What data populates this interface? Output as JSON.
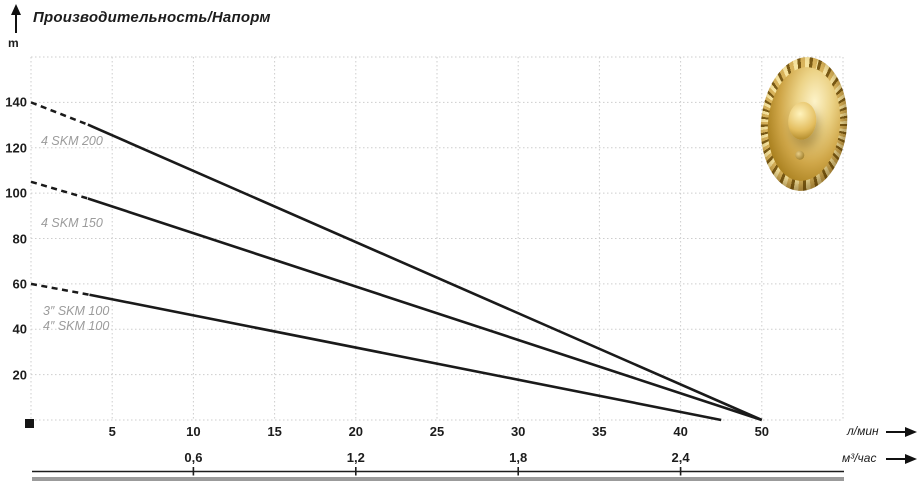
{
  "header": {
    "title": "Производительность/Напорм",
    "y_unit": "m"
  },
  "axis_units": {
    "primary": "л/мин",
    "secondary": "м³/час"
  },
  "curve_labels": {
    "skm200": "4 SKM 200",
    "skm150": "4 SKM 150",
    "skm100_3": "3″ SKM 100",
    "skm100_4": "4″ SKM 100"
  },
  "chart_data": {
    "type": "line",
    "title": "Производительность/Напорм",
    "ylabel": "m",
    "xlabel": "л/мин",
    "x2label": "м³/час",
    "ylim": [
      0,
      160
    ],
    "y_ticks": [
      20,
      40,
      60,
      80,
      100,
      120,
      140
    ],
    "x_ticks": {
      "labels": [
        "5",
        "10",
        "15",
        "20",
        "25",
        "30",
        "35",
        "40",
        "50"
      ],
      "values": [
        5,
        10,
        15,
        20,
        25,
        30,
        35,
        40,
        50
      ],
      "spacing": "equal-steps (45 skipped, 40→50 compressed)"
    },
    "x2_ticks": {
      "labels": [
        "0,6",
        "1,2",
        "1,8",
        "2,4"
      ],
      "at_lmin": [
        10,
        20,
        30,
        40
      ]
    },
    "grid": true,
    "legend_position": "inline-left",
    "series": [
      {
        "name": "4 SKM 200",
        "points": [
          [
            0,
            140
          ],
          [
            50,
            0
          ]
        ],
        "dashed_until_lmin": 3.5
      },
      {
        "name": "4 SKM 150",
        "points": [
          [
            0,
            105
          ],
          [
            50,
            0
          ]
        ],
        "dashed_until_lmin": 3.5
      },
      {
        "name": "3″/4″ SKM 100",
        "points": [
          [
            0,
            60
          ],
          [
            45,
            0
          ]
        ],
        "dashed_until_lmin": 3.6
      }
    ],
    "line_color": "#1a1a1a",
    "grid_color": "#cdcdcd",
    "curve_label_color": "#9b9b9b"
  }
}
